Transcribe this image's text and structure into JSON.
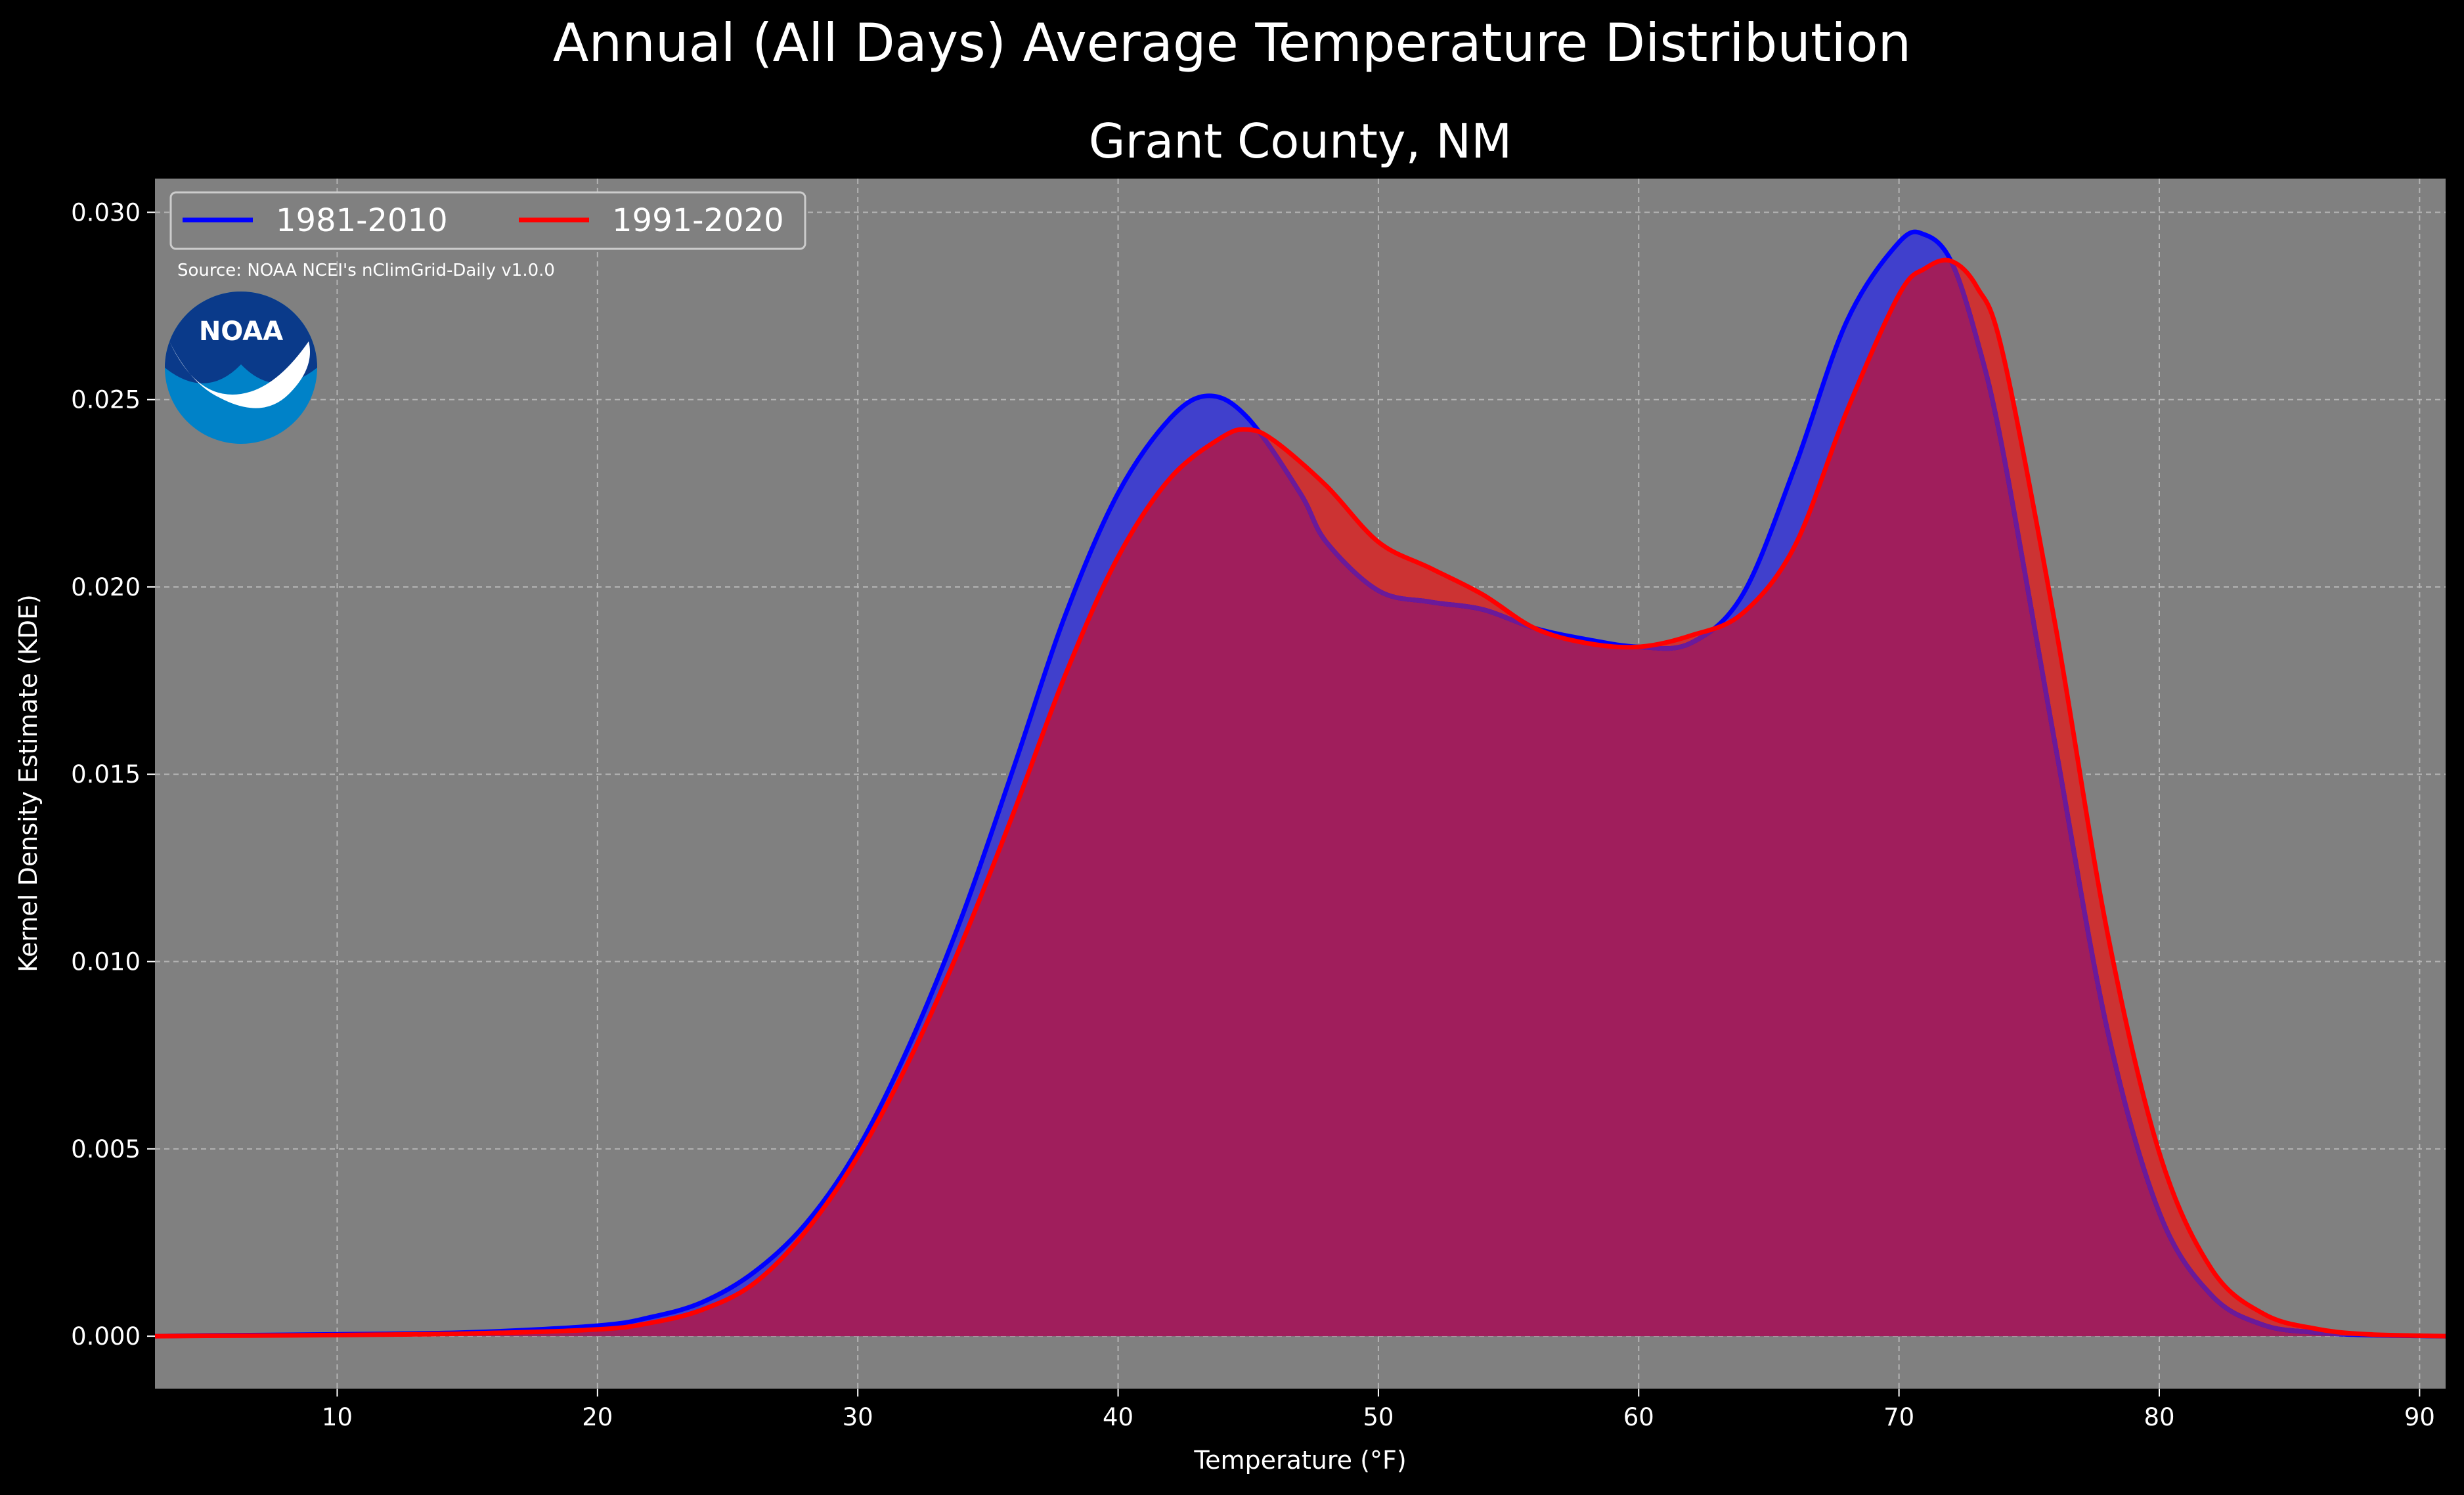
{
  "suptitle": "Annual (All Days) Average Temperature Distribution",
  "chart_data": {
    "type": "area",
    "title": "Grant County, NM",
    "xlabel": "Temperature (°F)",
    "ylabel": "Kernel Density Estimate (KDE)",
    "xlim": [
      3,
      91
    ],
    "ylim": [
      -0.0014,
      0.0309
    ],
    "xticks": [
      10,
      20,
      30,
      40,
      50,
      60,
      70,
      80,
      90
    ],
    "yticks": [
      0.0,
      0.005,
      0.01,
      0.015,
      0.02,
      0.025,
      0.03
    ],
    "ytick_labels": [
      "0.000",
      "0.005",
      "0.010",
      "0.015",
      "0.020",
      "0.025",
      "0.030"
    ],
    "grid": true,
    "background_color": "#808080",
    "legend_placement": "upper-left",
    "series": [
      {
        "name": "1981-2010",
        "color": "#0000ff",
        "fill_color": "#4040cc",
        "x": [
          3,
          5,
          10,
          15,
          20,
          22,
          24,
          26,
          28,
          30,
          32,
          34,
          36,
          38,
          40,
          42,
          43.5,
          45,
          47,
          48,
          50,
          52,
          54,
          56,
          58,
          60,
          62,
          64,
          66,
          68,
          70,
          71,
          72,
          73,
          74,
          76,
          78,
          80,
          82,
          84,
          86,
          88,
          91
        ],
        "y": [
          0.0,
          2e-05,
          5e-05,
          0.0001,
          0.00028,
          0.0005,
          0.0009,
          0.0017,
          0.003,
          0.005,
          0.0078,
          0.0112,
          0.0152,
          0.0193,
          0.0225,
          0.0245,
          0.0251,
          0.0245,
          0.0225,
          0.0212,
          0.0199,
          0.0196,
          0.0194,
          0.0189,
          0.0186,
          0.0184,
          0.0185,
          0.0198,
          0.0232,
          0.0271,
          0.0292,
          0.0294,
          0.0287,
          0.0266,
          0.0236,
          0.0158,
          0.0082,
          0.0033,
          0.0011,
          0.0003,
          0.0001,
          3e-05,
          0.0
        ]
      },
      {
        "name": "1991-2020",
        "color": "#ff0000",
        "fill_color": "#cc3333",
        "x": [
          3,
          5,
          10,
          15,
          20,
          22,
          24,
          26,
          28,
          30,
          32,
          34,
          36,
          38,
          40,
          42,
          44,
          45,
          46,
          48,
          50,
          52,
          54,
          56,
          58,
          60,
          62,
          64,
          66,
          68,
          70,
          71,
          72,
          73,
          74,
          76,
          78,
          80,
          82,
          84,
          86,
          88,
          91
        ],
        "y": [
          0.0,
          1e-05,
          3e-05,
          7e-05,
          0.00018,
          0.00035,
          0.0007,
          0.0014,
          0.0028,
          0.0048,
          0.0074,
          0.0105,
          0.014,
          0.0177,
          0.0208,
          0.0229,
          0.024,
          0.0242,
          0.0239,
          0.0227,
          0.0212,
          0.0205,
          0.0198,
          0.0189,
          0.0185,
          0.0184,
          0.0187,
          0.0193,
          0.0211,
          0.0247,
          0.0278,
          0.0285,
          0.0287,
          0.028,
          0.0262,
          0.019,
          0.0108,
          0.0049,
          0.0018,
          0.0006,
          0.0002,
          5e-05,
          0.0
        ]
      }
    ],
    "overlap_color": "#a01e5c",
    "annotation": "Source: NOAA NCEI's nClimGrid-Daily v1.0.0",
    "logo_text": "NOAA"
  }
}
